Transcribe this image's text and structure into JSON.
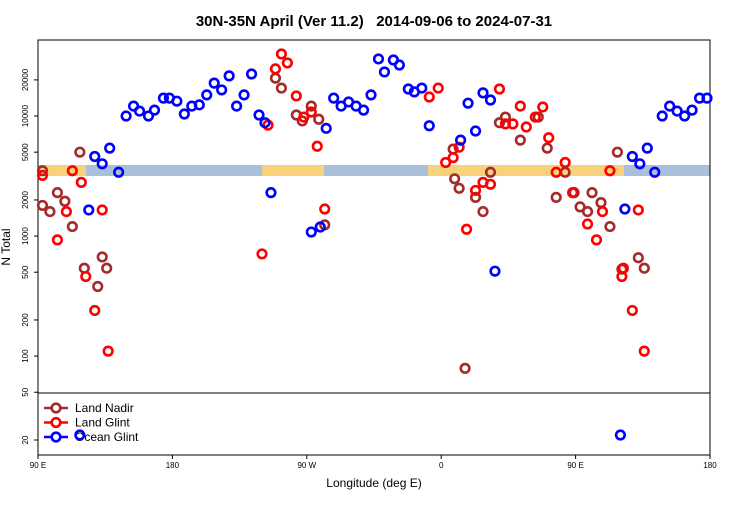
{
  "chart_data": {
    "type": "scatter",
    "title": "30N-35N April (Ver 11.2)   2014-09-06 to 2024-07-31",
    "x_label": "Longitude (deg E)",
    "y_label": "N Total",
    "xlim": [
      90,
      540
    ],
    "xticks": [
      {
        "value": 90,
        "label": "90 E"
      },
      {
        "value": 180,
        "label": "180"
      },
      {
        "value": 270,
        "label": "90 W"
      },
      {
        "value": 360,
        "label": "0"
      },
      {
        "value": 450,
        "label": "90 E"
      },
      {
        "value": 540,
        "label": "180"
      }
    ],
    "ylim": [
      15,
      43000
    ],
    "log_y": true,
    "yticks": [
      20,
      50,
      100,
      200,
      500,
      1000,
      2000,
      5000,
      10000,
      20000
    ],
    "legend": "lower left",
    "series": [
      {
        "name": "Land Nadir",
        "color": "#a52a2a",
        "x": [
          93,
          93,
          98,
          103,
          108,
          118,
          121,
          130,
          133,
          136,
          113,
          249,
          253,
          263,
          267,
          273,
          278,
          282,
          368,
          369,
          372,
          383,
          388,
          393,
          399,
          403,
          413,
          425,
          431,
          437,
          443,
          449,
          453,
          458,
          461,
          467,
          473,
          478,
          481,
          492,
          496,
          376
        ],
        "values": [
          3500,
          1800,
          1600,
          2300,
          1950,
          5000,
          540,
          380,
          670,
          540,
          1200,
          20700,
          17100,
          10200,
          9100,
          12100,
          9400,
          1240,
          5300,
          3000,
          2500,
          2100,
          1600,
          3400,
          8800,
          9800,
          6300,
          9800,
          5400,
          2100,
          3400,
          2300,
          1750,
          1600,
          2300,
          1900,
          1200,
          5000,
          530,
          660,
          540,
          79
        ]
      },
      {
        "name": "Land Glint",
        "color": "#ff0000",
        "x": [
          93,
          109,
          113,
          119,
          122,
          128,
          133,
          137,
          103,
          240,
          244,
          249,
          253,
          257,
          263,
          268,
          273,
          277,
          282,
          352,
          358,
          363,
          368,
          372,
          377,
          383,
          388,
          393,
          399,
          403,
          408,
          413,
          417,
          423,
          428,
          432,
          437,
          443,
          448,
          458,
          464,
          468,
          473,
          481,
          482,
          488,
          492,
          496
        ],
        "values": [
          3200,
          1600,
          3500,
          2800,
          460,
          240,
          1650,
          110,
          930,
          710,
          8400,
          24700,
          32900,
          27700,
          14700,
          9800,
          10800,
          5600,
          1680,
          14400,
          17100,
          4100,
          4500,
          5500,
          1140,
          2400,
          2800,
          2700,
          16800,
          8600,
          8600,
          12100,
          8100,
          9800,
          11900,
          6600,
          3400,
          4100,
          2300,
          1260,
          930,
          1600,
          3500,
          460,
          540,
          240,
          1650,
          110
        ]
      },
      {
        "name": "Ocean Glint",
        "color": "#0000ff",
        "x": [
          124,
          128,
          133,
          138,
          144,
          149,
          154,
          158,
          164,
          168,
          174,
          178,
          183,
          188,
          193,
          198,
          203,
          208,
          213,
          218,
          223,
          228,
          233,
          238,
          242,
          246,
          273,
          279,
          283,
          288,
          293,
          298,
          303,
          308,
          313,
          318,
          322,
          328,
          332,
          338,
          342,
          347,
          352,
          373,
          378,
          383,
          388,
          393,
          396,
          508,
          513,
          518,
          523,
          528,
          533,
          538,
          483,
          488,
          493,
          498,
          503,
          480,
          118
        ],
        "values": [
          1650,
          4600,
          4000,
          5400,
          3400,
          10000,
          12100,
          11000,
          10000,
          11200,
          14100,
          14100,
          13300,
          10400,
          12100,
          12400,
          15000,
          18800,
          16500,
          21600,
          12100,
          15000,
          22400,
          10200,
          8800,
          2300,
          1080,
          1190,
          7900,
          14100,
          12100,
          13100,
          12100,
          11200,
          15000,
          29900,
          23300,
          29300,
          26600,
          16800,
          15900,
          17100,
          8300,
          6300,
          12800,
          7500,
          15600,
          13600,
          510,
          10000,
          12100,
          11000,
          10000,
          11200,
          14100,
          14100,
          1680,
          4600,
          4000,
          5400,
          3400,
          22,
          22
        ]
      }
    ]
  }
}
